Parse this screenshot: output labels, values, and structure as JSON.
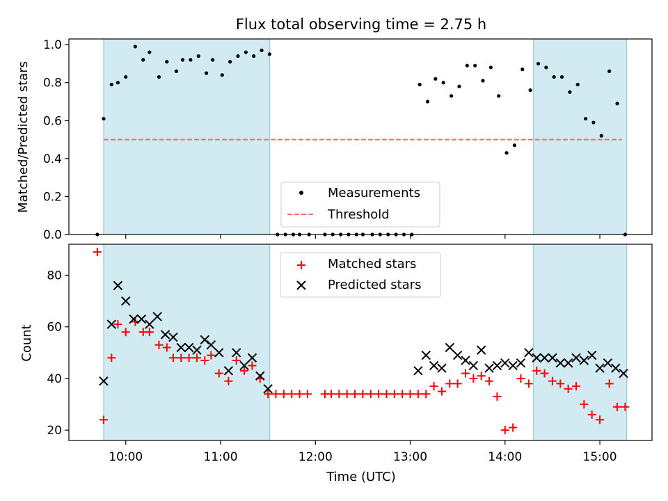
{
  "chart_data": [
    {
      "type": "scatter",
      "title": "Flux total observing time = 2.75 h",
      "xlabel": "",
      "ylabel": "Matched/Predicted stars",
      "ylim": [
        0,
        1.03
      ],
      "xlim": [
        "09:24",
        "15:33"
      ],
      "xticks": [
        "10:00",
        "11:00",
        "12:00",
        "13:00",
        "14:00",
        "15:00"
      ],
      "yticks": [
        "0.0",
        "0.2",
        "0.4",
        "0.6",
        "0.8",
        "1.0"
      ],
      "shaded_intervals": [
        [
          "09:46",
          "11:31"
        ],
        [
          "14:18",
          "15:17"
        ]
      ],
      "shade_color": "#add8e6",
      "legend": {
        "placement": "lower-center",
        "entries": [
          "Measurements",
          "Threshold"
        ]
      },
      "threshold": {
        "name": "Threshold",
        "y": 0.5,
        "x_range": [
          "09:46",
          "15:14"
        ],
        "color": "#ff6b6b",
        "style": "dashed"
      },
      "series": [
        {
          "name": "Measurements",
          "marker": "dot",
          "color": "#000000",
          "points": [
            [
              "09:42",
              0.0
            ],
            [
              "09:46",
              0.61
            ],
            [
              "09:51",
              0.79
            ],
            [
              "09:55",
              0.8
            ],
            [
              "10:00",
              0.83
            ],
            [
              "10:06",
              0.99
            ],
            [
              "10:11",
              0.92
            ],
            [
              "10:15",
              0.96
            ],
            [
              "10:21",
              0.83
            ],
            [
              "10:26",
              0.91
            ],
            [
              "10:32",
              0.86
            ],
            [
              "10:36",
              0.92
            ],
            [
              "10:41",
              0.92
            ],
            [
              "10:46",
              0.94
            ],
            [
              "10:51",
              0.85
            ],
            [
              "10:55",
              0.92
            ],
            [
              "11:01",
              0.84
            ],
            [
              "11:06",
              0.91
            ],
            [
              "11:11",
              0.94
            ],
            [
              "11:16",
              0.96
            ],
            [
              "11:21",
              0.94
            ],
            [
              "11:26",
              0.97
            ],
            [
              "11:31",
              0.95
            ],
            [
              "11:36",
              0.0
            ],
            [
              "11:41",
              0.0
            ],
            [
              "11:46",
              0.0
            ],
            [
              "11:50",
              0.0
            ],
            [
              "11:56",
              0.0
            ],
            [
              "12:06",
              0.0
            ],
            [
              "12:11",
              0.0
            ],
            [
              "12:16",
              0.0
            ],
            [
              "12:21",
              0.0
            ],
            [
              "12:26",
              0.0
            ],
            [
              "12:30",
              0.0
            ],
            [
              "12:36",
              0.0
            ],
            [
              "12:41",
              0.0
            ],
            [
              "12:46",
              0.0
            ],
            [
              "12:51",
              0.0
            ],
            [
              "12:56",
              0.0
            ],
            [
              "13:01",
              0.0
            ],
            [
              "13:06",
              0.79
            ],
            [
              "13:11",
              0.7
            ],
            [
              "13:16",
              0.82
            ],
            [
              "13:21",
              0.8
            ],
            [
              "13:26",
              0.73
            ],
            [
              "13:31",
              0.78
            ],
            [
              "13:36",
              0.89
            ],
            [
              "13:41",
              0.89
            ],
            [
              "13:46",
              0.81
            ],
            [
              "13:51",
              0.88
            ],
            [
              "13:56",
              0.73
            ],
            [
              "14:01",
              0.43
            ],
            [
              "14:06",
              0.47
            ],
            [
              "14:11",
              0.87
            ],
            [
              "14:16",
              0.76
            ],
            [
              "14:21",
              0.9
            ],
            [
              "14:26",
              0.88
            ],
            [
              "14:31",
              0.83
            ],
            [
              "14:36",
              0.83
            ],
            [
              "14:41",
              0.75
            ],
            [
              "14:46",
              0.79
            ],
            [
              "14:51",
              0.61
            ],
            [
              "14:56",
              0.59
            ],
            [
              "15:01",
              0.52
            ],
            [
              "15:06",
              0.86
            ],
            [
              "15:11",
              0.69
            ],
            [
              "15:16",
              0.0
            ]
          ]
        }
      ]
    },
    {
      "type": "scatter",
      "title": "",
      "xlabel": "Time (UTC)",
      "ylabel": "Count",
      "ylim": [
        16,
        92
      ],
      "xlim": [
        "09:24",
        "15:33"
      ],
      "xticks": [
        "10:00",
        "11:00",
        "12:00",
        "13:00",
        "14:00",
        "15:00"
      ],
      "yticks": [
        "20",
        "40",
        "60",
        "80"
      ],
      "shaded_intervals": [
        [
          "09:46",
          "11:31"
        ],
        [
          "14:18",
          "15:17"
        ]
      ],
      "shade_color": "#add8e6",
      "legend": {
        "placement": "top-center",
        "entries": [
          "Matched stars",
          "Predicted stars"
        ]
      },
      "series": [
        {
          "name": "Matched stars",
          "marker": "plus",
          "color": "#ff0000",
          "points": [
            [
              "09:42",
              89
            ],
            [
              "09:46",
              24
            ],
            [
              "09:51",
              48
            ],
            [
              "09:55",
              61
            ],
            [
              "10:00",
              58
            ],
            [
              "10:06",
              62
            ],
            [
              "10:11",
              58
            ],
            [
              "10:15",
              58
            ],
            [
              "10:21",
              53
            ],
            [
              "10:26",
              52
            ],
            [
              "10:30",
              48
            ],
            [
              "10:35",
              48
            ],
            [
              "10:40",
              48
            ],
            [
              "10:45",
              48
            ],
            [
              "10:50",
              47
            ],
            [
              "10:54",
              49
            ],
            [
              "10:59",
              42
            ],
            [
              "11:05",
              39
            ],
            [
              "11:10",
              47
            ],
            [
              "11:15",
              43
            ],
            [
              "11:20",
              45
            ],
            [
              "11:25",
              40
            ],
            [
              "11:30",
              34
            ],
            [
              "11:35",
              34
            ],
            [
              "11:40",
              34
            ],
            [
              "11:45",
              34
            ],
            [
              "11:50",
              34
            ],
            [
              "11:55",
              34
            ],
            [
              "12:06",
              34
            ],
            [
              "12:10",
              34
            ],
            [
              "12:15",
              34
            ],
            [
              "12:20",
              34
            ],
            [
              "12:25",
              34
            ],
            [
              "12:30",
              34
            ],
            [
              "12:35",
              34
            ],
            [
              "12:40",
              34
            ],
            [
              "12:45",
              34
            ],
            [
              "12:50",
              34
            ],
            [
              "12:55",
              34
            ],
            [
              "13:00",
              34
            ],
            [
              "13:05",
              34
            ],
            [
              "13:10",
              34
            ],
            [
              "13:15",
              37
            ],
            [
              "13:20",
              35
            ],
            [
              "13:25",
              38
            ],
            [
              "13:30",
              38
            ],
            [
              "13:35",
              42
            ],
            [
              "13:40",
              40
            ],
            [
              "13:45",
              41
            ],
            [
              "13:50",
              39
            ],
            [
              "13:55",
              33
            ],
            [
              "14:00",
              20
            ],
            [
              "14:05",
              21
            ],
            [
              "14:10",
              40
            ],
            [
              "14:15",
              38
            ],
            [
              "14:20",
              43
            ],
            [
              "14:25",
              42
            ],
            [
              "14:30",
              39
            ],
            [
              "14:35",
              38
            ],
            [
              "14:40",
              36
            ],
            [
              "14:45",
              37
            ],
            [
              "14:50",
              30
            ],
            [
              "14:55",
              26
            ],
            [
              "15:00",
              24
            ],
            [
              "15:06",
              38
            ],
            [
              "15:11",
              29
            ],
            [
              "15:16",
              29
            ]
          ]
        },
        {
          "name": "Predicted stars",
          "marker": "x",
          "color": "#000000",
          "points": [
            [
              "09:46",
              39
            ],
            [
              "09:51",
              61
            ],
            [
              "09:55",
              76
            ],
            [
              "10:00",
              70
            ],
            [
              "10:05",
              63
            ],
            [
              "10:10",
              63
            ],
            [
              "10:15",
              61
            ],
            [
              "10:20",
              64
            ],
            [
              "10:25",
              57
            ],
            [
              "10:30",
              56
            ],
            [
              "10:35",
              52
            ],
            [
              "10:40",
              52
            ],
            [
              "10:45",
              51
            ],
            [
              "10:50",
              55
            ],
            [
              "10:54",
              53
            ],
            [
              "10:59",
              50
            ],
            [
              "11:05",
              43
            ],
            [
              "11:10",
              50
            ],
            [
              "11:15",
              45
            ],
            [
              "11:20",
              48
            ],
            [
              "11:25",
              41
            ],
            [
              "11:30",
              36
            ],
            [
              "13:05",
              43
            ],
            [
              "13:10",
              49
            ],
            [
              "13:15",
              45
            ],
            [
              "13:20",
              44
            ],
            [
              "13:25",
              52
            ],
            [
              "13:30",
              49
            ],
            [
              "13:35",
              47
            ],
            [
              "13:40",
              45
            ],
            [
              "13:45",
              51
            ],
            [
              "13:50",
              44
            ],
            [
              "13:55",
              45
            ],
            [
              "14:00",
              46
            ],
            [
              "14:05",
              45
            ],
            [
              "14:10",
              46
            ],
            [
              "14:15",
              50
            ],
            [
              "14:20",
              48
            ],
            [
              "14:25",
              48
            ],
            [
              "14:30",
              48
            ],
            [
              "14:35",
              46
            ],
            [
              "14:40",
              46
            ],
            [
              "14:45",
              48
            ],
            [
              "14:50",
              47
            ],
            [
              "14:55",
              49
            ],
            [
              "15:00",
              44
            ],
            [
              "15:05",
              46
            ],
            [
              "15:10",
              44
            ],
            [
              "15:15",
              42
            ]
          ]
        }
      ]
    }
  ]
}
